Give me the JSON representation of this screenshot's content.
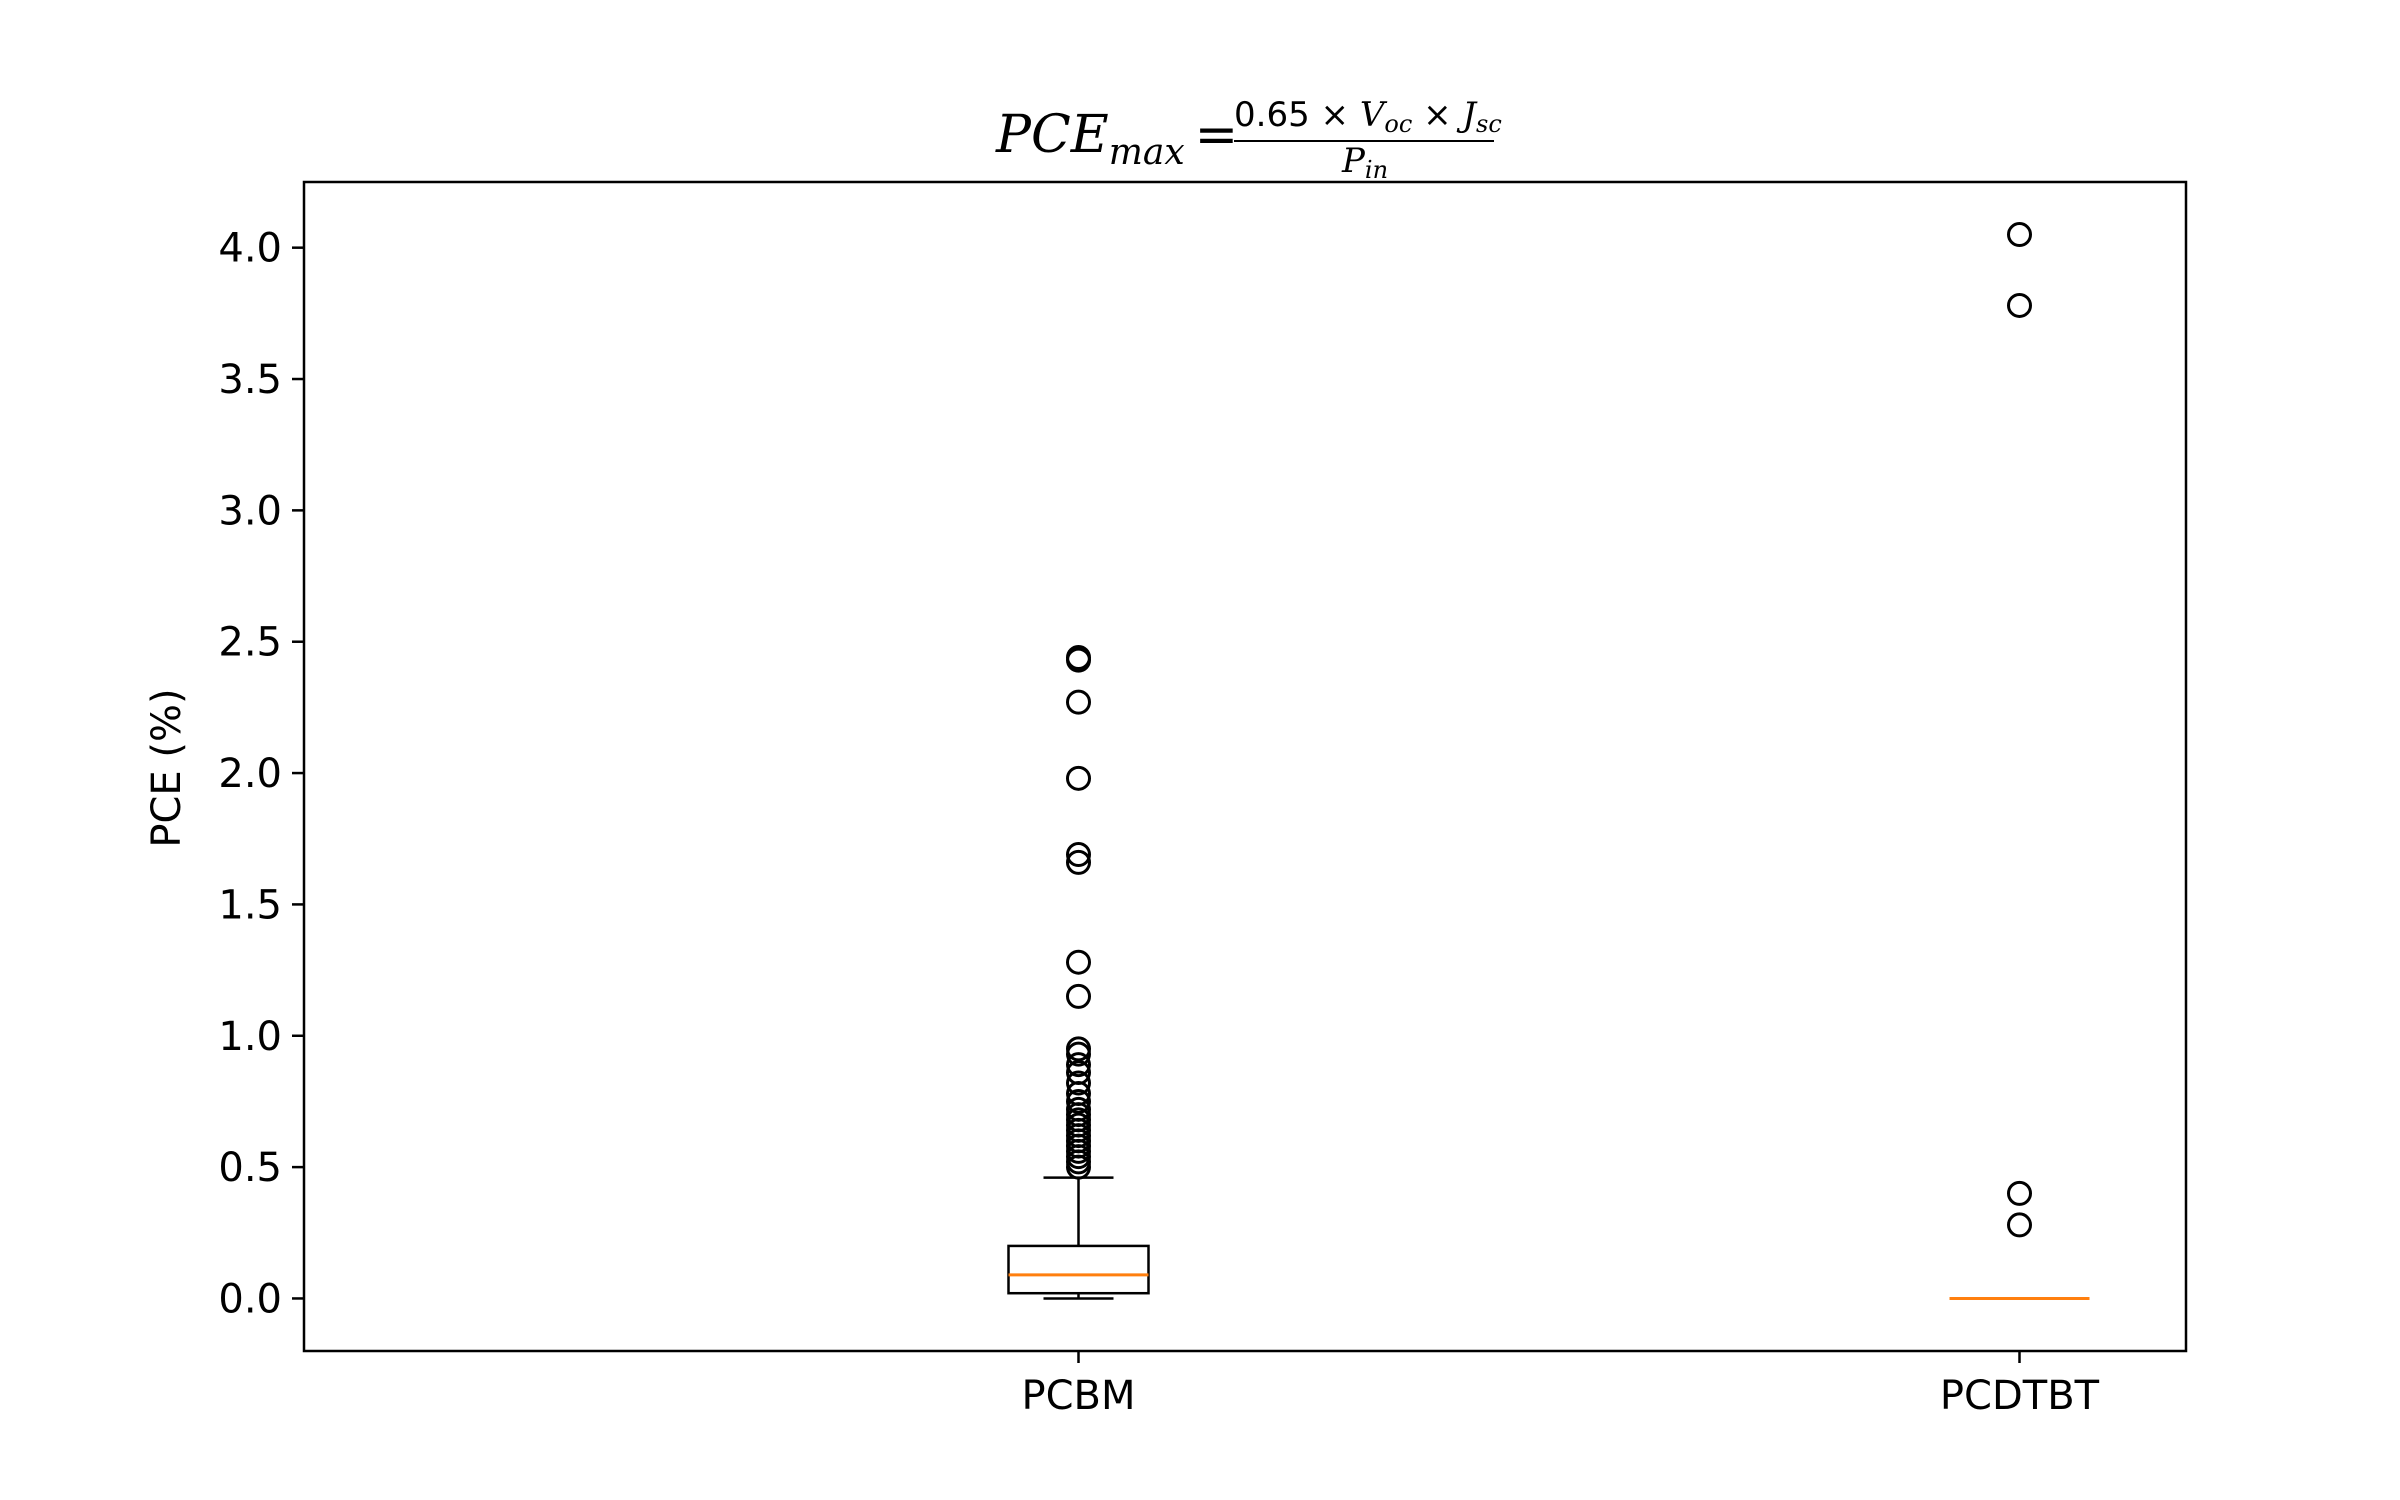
{
  "chart_data": {
    "type": "box",
    "title": {
      "lhs_main": "PCE",
      "lhs_sub": "max",
      "equals": "=",
      "numerator_coef": "0.65 × ",
      "numerator_v": "V",
      "numerator_v_sub": "oc",
      "numerator_times": " × ",
      "numerator_j": "J",
      "numerator_j_sub": "sc",
      "denominator_p": "P",
      "denominator_p_sub": "in"
    },
    "ylabel": "PCE (%)",
    "xlabel": "",
    "ylim": [
      -0.2,
      4.25
    ],
    "yticks": [
      0.0,
      0.5,
      1.0,
      1.5,
      2.0,
      2.5,
      3.0,
      3.5,
      4.0
    ],
    "ytick_labels": [
      "0.0",
      "0.5",
      "1.0",
      "1.5",
      "2.0",
      "2.5",
      "3.0",
      "3.5",
      "4.0"
    ],
    "categories": [
      "PCBM",
      "PCDTBT"
    ],
    "boxes": [
      {
        "category": "PCBM",
        "whisker_low": 0.0,
        "q1": 0.02,
        "median": 0.09,
        "q3": 0.2,
        "whisker_high": 0.46,
        "outliers": [
          0.5,
          0.52,
          0.54,
          0.56,
          0.58,
          0.6,
          0.62,
          0.64,
          0.66,
          0.68,
          0.7,
          0.72,
          0.75,
          0.78,
          0.82,
          0.86,
          0.89,
          0.93,
          0.95,
          1.15,
          1.28,
          1.66,
          1.69,
          1.98,
          2.27,
          2.43,
          2.44
        ]
      },
      {
        "category": "PCDTBT",
        "whisker_low": 0.0,
        "q1": 0.0,
        "median": 0.0,
        "q3": 0.0,
        "whisker_high": 0.0,
        "outliers": [
          0.28,
          0.4,
          3.78,
          4.05
        ]
      }
    ],
    "colors": {
      "box": "#000000",
      "median": "#ff7f0e",
      "outlier_edge": "#000000"
    },
    "grid": false,
    "legend": "none"
  }
}
